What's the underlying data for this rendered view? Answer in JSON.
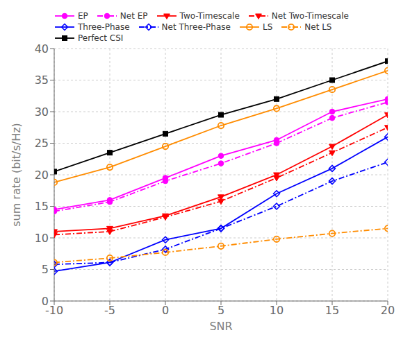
{
  "chart_data": {
    "type": "line",
    "xlabel": "SNR",
    "ylabel": "sum rate (bit/s/Hz)",
    "x": [
      -10,
      -5,
      0,
      5,
      10,
      15,
      20
    ],
    "xlim": [
      -10,
      20
    ],
    "xticks": [
      -10,
      -5,
      0,
      5,
      10,
      15,
      20
    ],
    "ylim": [
      0,
      40
    ],
    "yticks": [
      0,
      5,
      10,
      15,
      20,
      25,
      30,
      35,
      40
    ],
    "grid": true,
    "legend": "upper left",
    "series": [
      {
        "name": "EP",
        "color": "#FF00FF",
        "marker": "circle",
        "line_style": "solid",
        "values": [
          14.5,
          16.0,
          19.5,
          23.0,
          25.5,
          30.0,
          32.0
        ]
      },
      {
        "name": "Net EP",
        "color": "#FF00FF",
        "marker": "circle",
        "line_style": "dashdot",
        "values": [
          14.2,
          15.7,
          19.0,
          21.8,
          25.0,
          29.0,
          31.5
        ]
      },
      {
        "name": "Two-Timescale",
        "color": "#FF0000",
        "marker": "triangle-down",
        "line_style": "solid",
        "values": [
          11.0,
          11.5,
          13.5,
          16.5,
          20.0,
          24.5,
          29.5
        ]
      },
      {
        "name": "Net Two-Timescale",
        "color": "#FF0000",
        "marker": "triangle-down",
        "line_style": "dashdot",
        "values": [
          10.5,
          11.0,
          13.3,
          15.8,
          19.5,
          23.5,
          27.5
        ]
      },
      {
        "name": "Three-Phase",
        "color": "#0000FF",
        "marker": "diamond-open",
        "line_style": "solid",
        "values": [
          4.7,
          6.1,
          9.7,
          11.5,
          17.0,
          21.0,
          26.0
        ]
      },
      {
        "name": "Net Three-Phase",
        "color": "#0000FF",
        "marker": "diamond-open",
        "line_style": "dashdot",
        "values": [
          5.8,
          6.1,
          8.2,
          11.5,
          15.0,
          19.0,
          22.0
        ]
      },
      {
        "name": "LS",
        "color": "#FF8C00",
        "marker": "circle-open",
        "line_style": "solid",
        "values": [
          18.8,
          21.2,
          24.5,
          27.8,
          30.5,
          33.5,
          36.5
        ]
      },
      {
        "name": "Net LS",
        "color": "#FF8C00",
        "marker": "circle-open",
        "line_style": "dashdot",
        "values": [
          6.1,
          6.8,
          7.7,
          8.7,
          9.8,
          10.7,
          11.5
        ]
      },
      {
        "name": "Perfect CSI",
        "color": "#000000",
        "marker": "square",
        "line_style": "solid",
        "values": [
          20.5,
          23.5,
          26.5,
          29.5,
          32.0,
          35.0,
          38.0
        ]
      }
    ]
  }
}
